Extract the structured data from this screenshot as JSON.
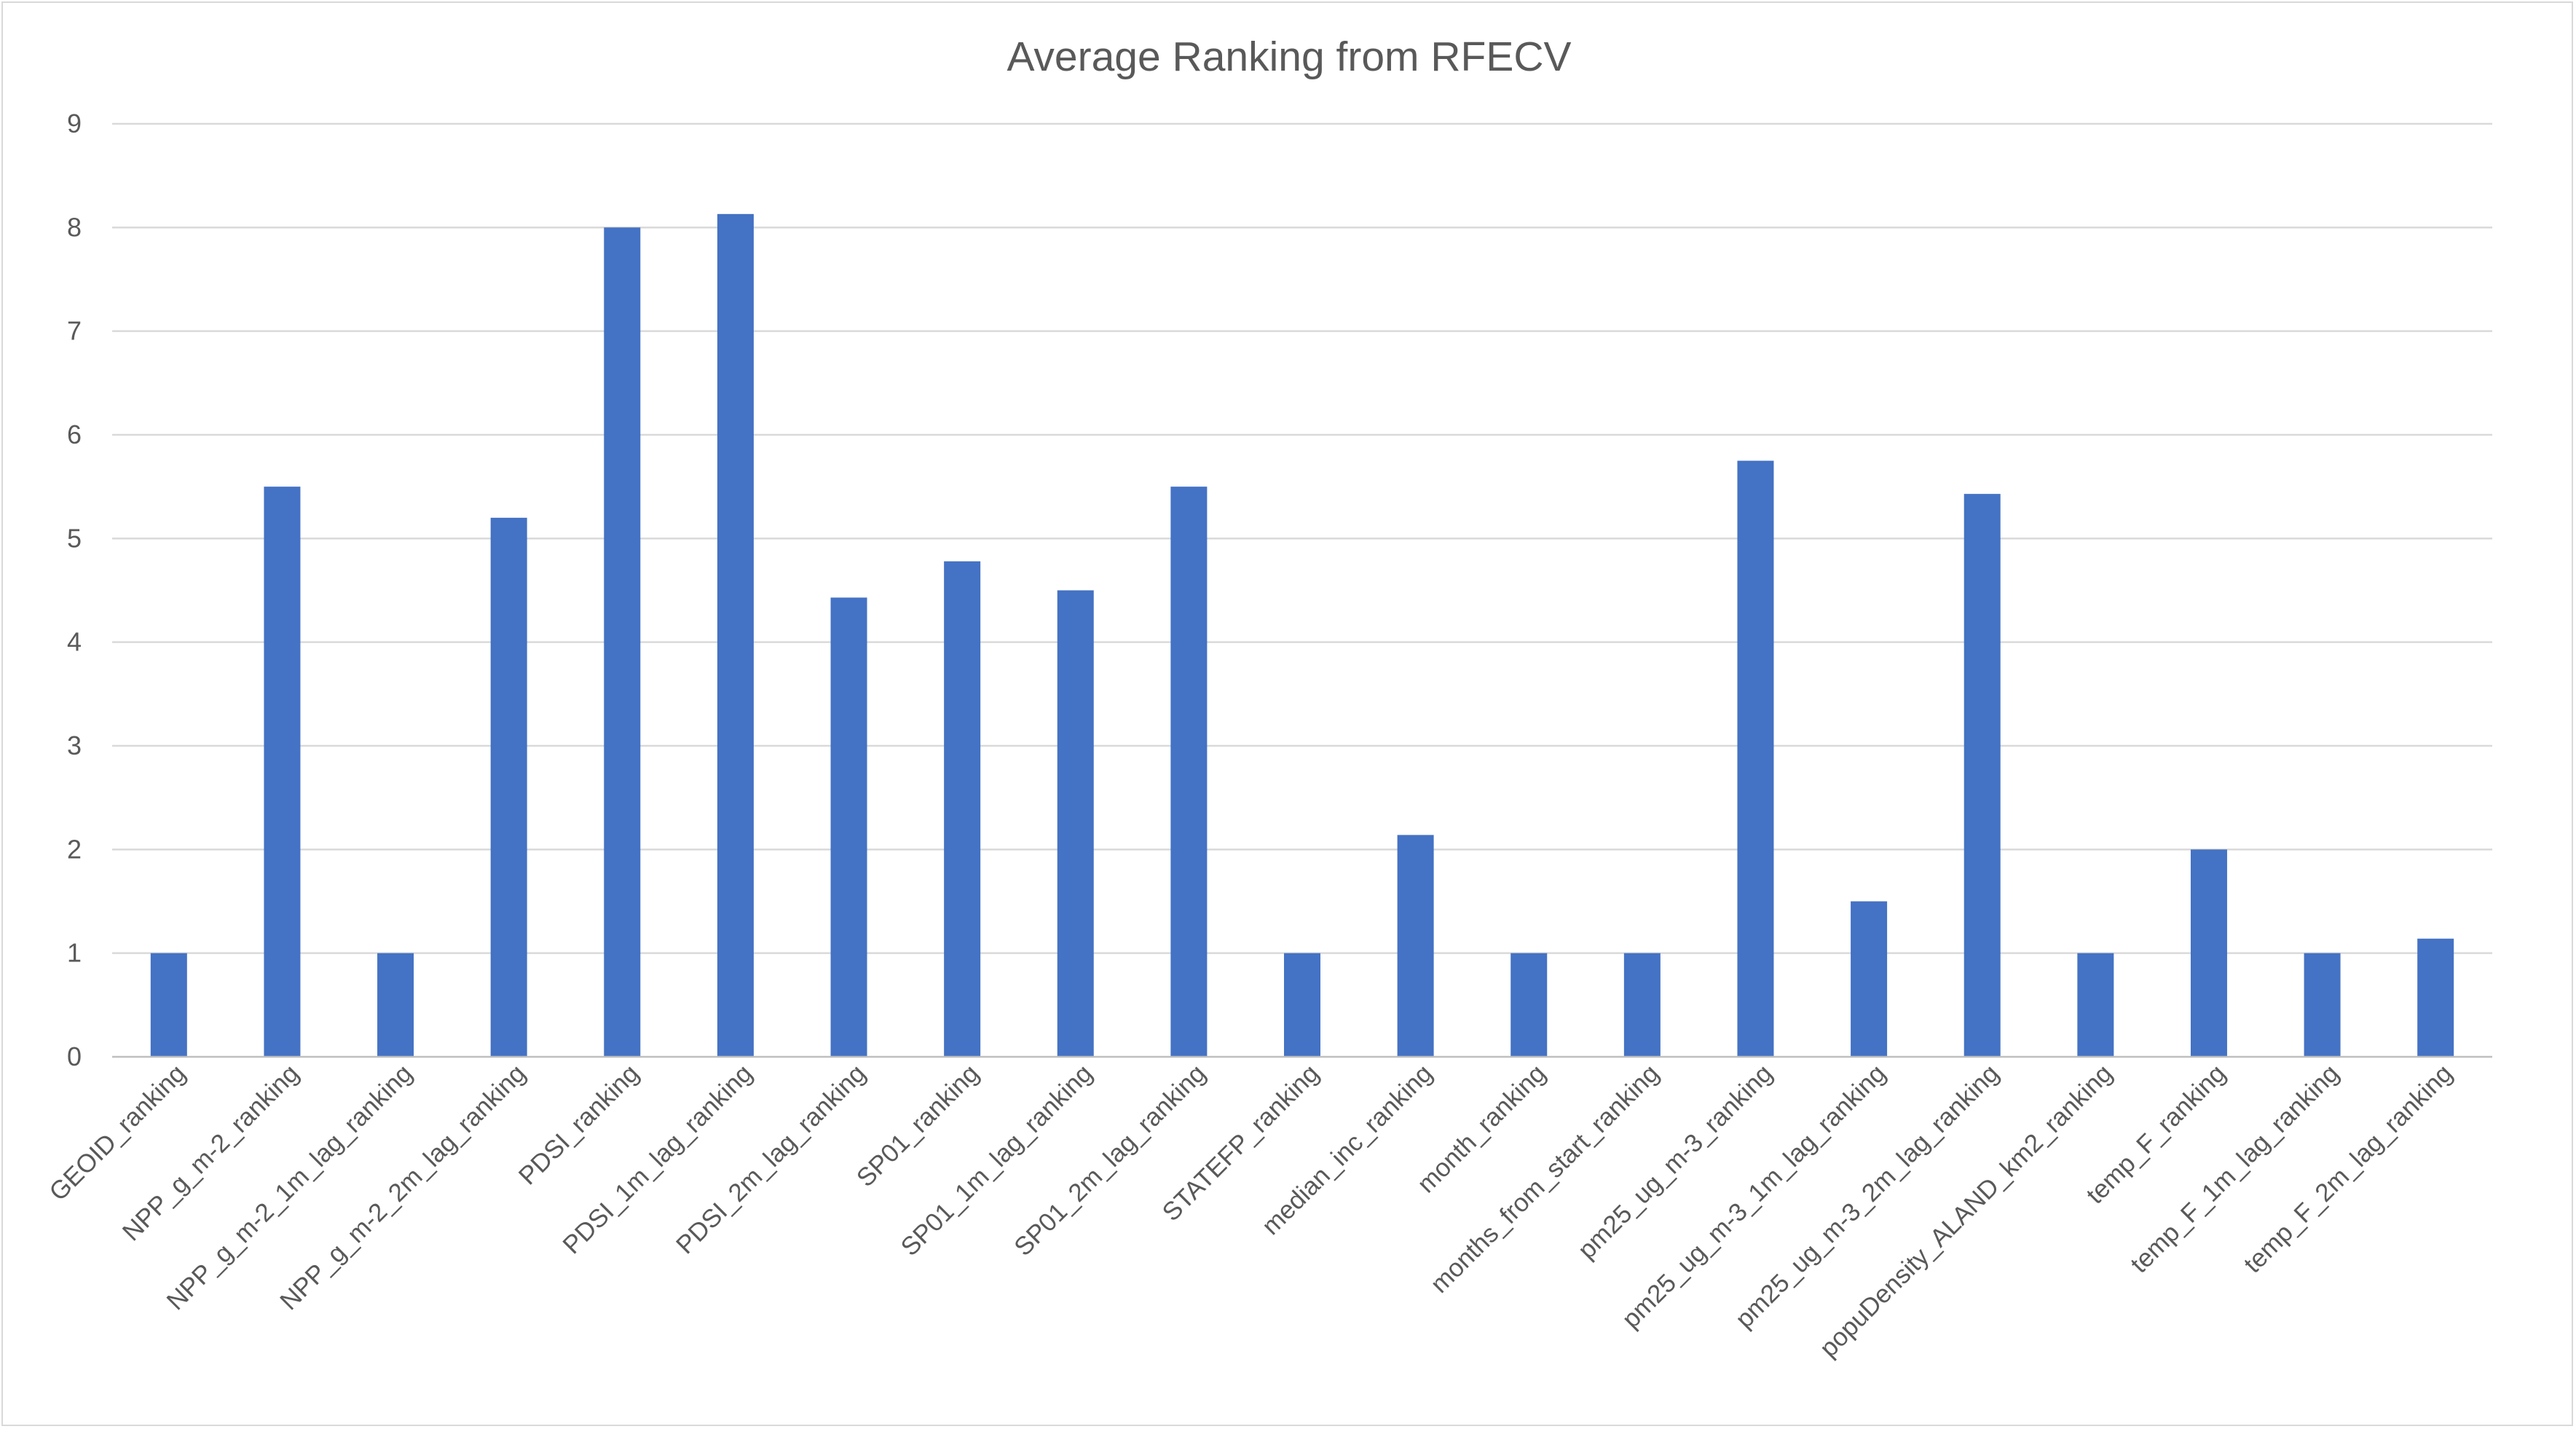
{
  "chart_data": {
    "type": "bar",
    "title": "Average Ranking from RFECV",
    "xlabel": "",
    "ylabel": "",
    "ylim": [
      0,
      9
    ],
    "yticks": [
      0,
      1,
      2,
      3,
      4,
      5,
      6,
      7,
      8,
      9
    ],
    "grid": true,
    "legend": "none",
    "bar_color": "#4472c4",
    "categories": [
      "GEOID_ranking",
      "NPP_g_m-2_ranking",
      "NPP_g_m-2_1m_lag_ranking",
      "NPP_g_m-2_2m_lag_ranking",
      "PDSI_ranking",
      "PDSI_1m_lag_ranking",
      "PDSI_2m_lag_ranking",
      "SP01_ranking",
      "SP01_1m_lag_ranking",
      "SP01_2m_lag_ranking",
      "STATEFP_ranking",
      "median_inc_ranking",
      "month_ranking",
      "months_from_start_ranking",
      "pm25_ug_m-3_ranking",
      "pm25_ug_m-3_1m_lag_ranking",
      "pm25_ug_m-3_2m_lag_ranking",
      "popuDensity_ALAND_km2_ranking",
      "temp_F_ranking",
      "temp_F_1m_lag_ranking",
      "temp_F_2m_lag_ranking"
    ],
    "values": [
      1,
      5.5,
      1,
      5.2,
      8,
      8.13,
      4.43,
      4.78,
      4.5,
      5.5,
      1,
      2.14,
      1,
      1,
      5.75,
      1.5,
      5.43,
      1,
      2,
      1,
      1.14
    ]
  }
}
